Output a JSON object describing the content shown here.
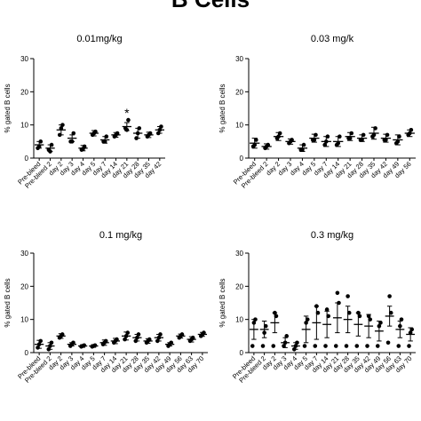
{
  "figure": {
    "title": "B Cells"
  },
  "chart_data": [
    {
      "type": "scatter",
      "title": "0.01mg/kg",
      "ylabel": "% gated B cells",
      "xlabel": "",
      "ylim": [
        0,
        30
      ],
      "yticks": [
        0,
        10,
        20,
        30
      ],
      "categories": [
        "Pre-bleed",
        "Pre-bleed 2",
        "day 2",
        "day 3",
        "day 4",
        "day 5",
        "day 7",
        "day 14",
        "day 21",
        "day 28",
        "day 35",
        "day 42"
      ],
      "series": [
        {
          "means": [
            4,
            3,
            8.5,
            6,
            3,
            7.5,
            5.5,
            7,
            9.5,
            7.5,
            7,
            8.5
          ],
          "sem": [
            1,
            1,
            1.5,
            1,
            0.8,
            0.8,
            1,
            0.7,
            1.2,
            1.5,
            0.8,
            1
          ],
          "points": [
            [
              3,
              5,
              3.5
            ],
            [
              2.5,
              4,
              2
            ],
            [
              7,
              10,
              9
            ],
            [
              5,
              7.5,
              5
            ],
            [
              2.5,
              3.5,
              2.8
            ],
            [
              7,
              8,
              7.5
            ],
            [
              5,
              6.5,
              5
            ],
            [
              6.5,
              7.5,
              7
            ],
            [
              9,
              11.5,
              8.5
            ],
            [
              6,
              9,
              7.5
            ],
            [
              6.5,
              7.5,
              7
            ],
            [
              7.5,
              9.5,
              8.5
            ]
          ]
        }
      ],
      "annotations": [
        {
          "category": "day 21",
          "text": "*"
        }
      ],
      "grid": false
    },
    {
      "type": "scatter",
      "title": "0.03 mg/k",
      "ylabel": "% gated B cells",
      "xlabel": "",
      "ylim": [
        0,
        30
      ],
      "yticks": [
        0,
        10,
        20,
        30
      ],
      "categories": [
        "Pre-bleed",
        "Pre-bleed 2",
        "day 2",
        "day 3",
        "day 4",
        "day 5",
        "day 7",
        "day 14",
        "day 21",
        "day 28",
        "day 35",
        "day 42",
        "day 49",
        "day 56"
      ],
      "series": [
        {
          "means": [
            4.5,
            3.5,
            6.5,
            5,
            3,
            6,
            5,
            5,
            6.5,
            6,
            7.5,
            6,
            5.5,
            7.5
          ],
          "sem": [
            1.5,
            0.8,
            1.2,
            0.8,
            1,
            1.2,
            1.5,
            1.5,
            1.2,
            1,
            1.8,
            1.2,
            1.5,
            1
          ],
          "points": [
            [
              3.5,
              5.5,
              4
            ],
            [
              3,
              4,
              3.5
            ],
            [
              6,
              7.5,
              6.5
            ],
            [
              4.5,
              5.5,
              5
            ],
            [
              2.5,
              4,
              2.5
            ],
            [
              5.5,
              7,
              5.5
            ],
            [
              4,
              6.5,
              5
            ],
            [
              4,
              6.5,
              4.5
            ],
            [
              6,
              7.5,
              6
            ],
            [
              5.5,
              7,
              5.5
            ],
            [
              6.5,
              9,
              7
            ],
            [
              5.5,
              7,
              5.5
            ],
            [
              4.5,
              6.5,
              5
            ],
            [
              7,
              8.5,
              7.5
            ]
          ]
        }
      ],
      "grid": false
    },
    {
      "type": "scatter",
      "title": "0.1 mg/kg",
      "ylabel": "% gated B cells",
      "xlabel": "",
      "ylim": [
        0,
        30
      ],
      "yticks": [
        0,
        10,
        20,
        30
      ],
      "categories": [
        "Pre-bleed",
        "Pre-bleed 2",
        "day 2",
        "day 3",
        "day 4",
        "day 5",
        "day 7",
        "day 14",
        "day 21",
        "day 28",
        "day 35",
        "day 42",
        "day 49",
        "day 56",
        "day 63",
        "day 70"
      ],
      "series": [
        {
          "means": [
            2.5,
            2,
            5,
            2.5,
            2,
            2,
            3,
            3.5,
            5,
            4.5,
            3.5,
            4.5,
            2.5,
            5,
            4,
            5.5
          ],
          "sem": [
            1.2,
            1,
            0.7,
            0.5,
            0.4,
            0.4,
            0.8,
            0.8,
            1.2,
            1,
            0.7,
            1,
            0.5,
            0.6,
            0.8,
            0.6
          ],
          "points": [
            [
              1.5,
              3.5,
              2.5
            ],
            [
              1,
              3,
              2
            ],
            [
              4.5,
              5.5,
              5
            ],
            [
              2,
              3,
              2.5
            ],
            [
              1.8,
              2.2,
              2
            ],
            [
              1.8,
              2.2,
              2
            ],
            [
              2.5,
              3.5,
              3
            ],
            [
              3,
              4,
              3.5
            ],
            [
              4,
              6,
              5
            ],
            [
              3.5,
              5.5,
              4.5
            ],
            [
              3,
              4,
              3.5
            ],
            [
              3.5,
              5.5,
              4.5
            ],
            [
              2,
              3,
              2.5
            ],
            [
              4.5,
              5.5,
              5
            ],
            [
              3.5,
              4.5,
              4
            ],
            [
              5,
              6,
              5.5
            ]
          ]
        }
      ],
      "grid": false
    },
    {
      "type": "scatter",
      "title": "0.3 mg/kg",
      "ylabel": "% gated B cells",
      "xlabel": "",
      "ylim": [
        0,
        30
      ],
      "yticks": [
        0,
        10,
        20,
        30
      ],
      "categories": [
        "Pre-bleed",
        "Pre-bleed 2",
        "day 2",
        "day 3",
        "day 4",
        "day 5",
        "day 7",
        "day 14",
        "day 21",
        "day 28",
        "day 35",
        "day 42",
        "day 49",
        "day 56",
        "day 63",
        "day 70"
      ],
      "series": [
        {
          "means": [
            7,
            7,
            9,
            3,
            2,
            7,
            9,
            8.5,
            10.5,
            10,
            8.5,
            8,
            6.5,
            11,
            7,
            5.5
          ],
          "sem": [
            3,
            2.5,
            3,
            1.5,
            1,
            4,
            5,
            4,
            4.5,
            4,
            3.5,
            3.5,
            3,
            3,
            2.5,
            2
          ],
          "points": [
            [
              2,
              10,
              9
            ],
            [
              2,
              8,
              6
            ],
            [
              2,
              11,
              12
            ],
            [
              2,
              5,
              3
            ],
            [
              1,
              3,
              2
            ],
            [
              2,
              10,
              9
            ],
            [
              2,
              12,
              14
            ],
            [
              2,
              11,
              13
            ],
            [
              2,
              15,
              18
            ],
            [
              2,
              12,
              17
            ],
            [
              2,
              11,
              12
            ],
            [
              2,
              10,
              11
            ],
            [
              2,
              9,
              8
            ],
            [
              3,
              12,
              17
            ],
            [
              2,
              10,
              8
            ],
            [
              2,
              7,
              6
            ]
          ]
        }
      ],
      "grid": false
    }
  ]
}
